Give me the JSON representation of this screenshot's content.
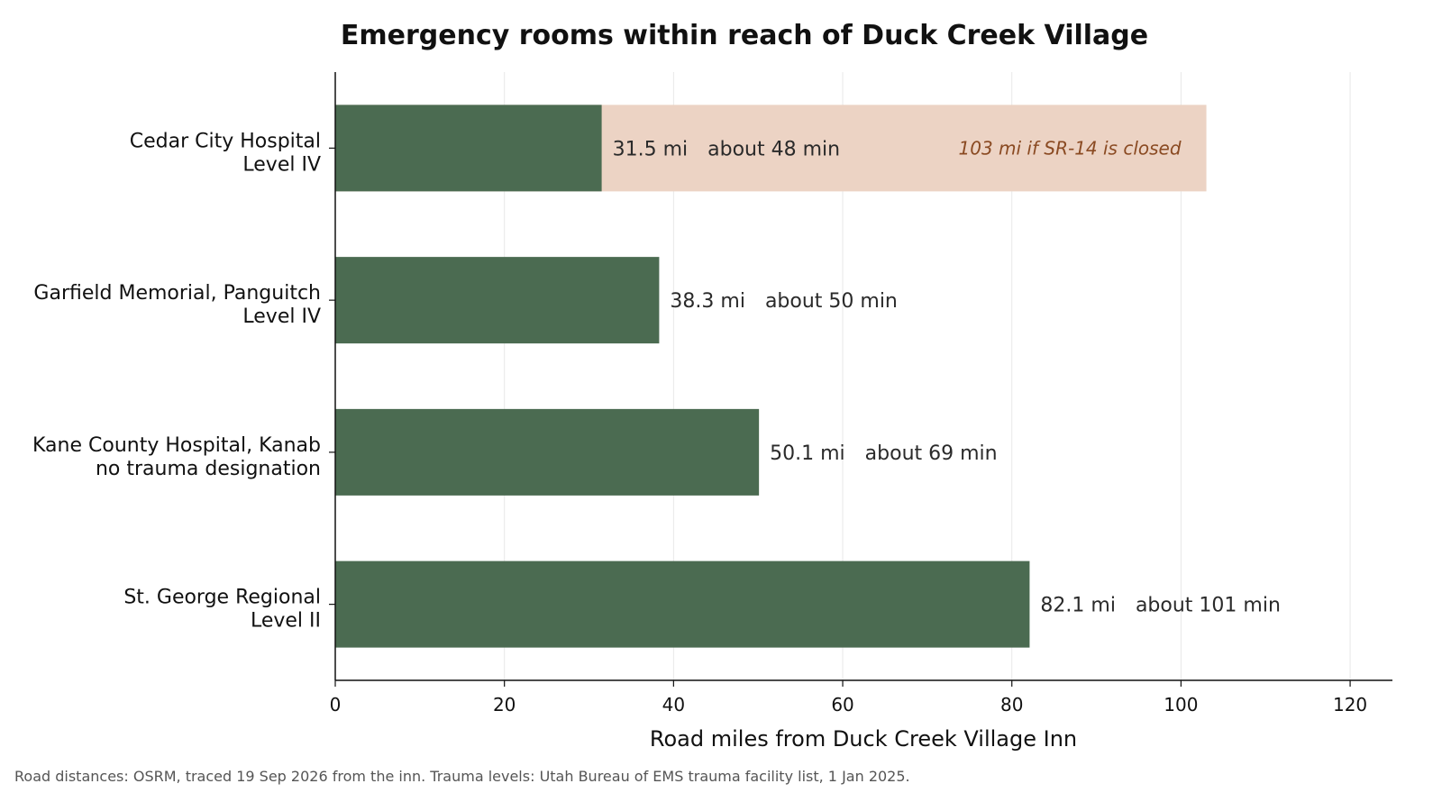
{
  "chart_data": {
    "type": "bar",
    "orientation": "horizontal",
    "title": "Emergency rooms within reach of Duck Creek Village",
    "xlabel": "Road miles from Duck Creek Village Inn",
    "ylabel": "",
    "xlim": [
      0,
      125
    ],
    "xticks": [
      0,
      20,
      40,
      60,
      80,
      100,
      120
    ],
    "grid": "vertical",
    "categories": [
      {
        "line1": "Cedar City Hospital",
        "line2": "Level IV"
      },
      {
        "line1": "Garfield Memorial, Panguitch",
        "line2": "Level IV"
      },
      {
        "line1": "Kane County Hospital, Kanab",
        "line2": "no trauma designation"
      },
      {
        "line1": "St. George Regional",
        "line2": "Level II"
      }
    ],
    "values": [
      31.5,
      38.3,
      50.1,
      82.1
    ],
    "value_labels": [
      "31.5 mi",
      "38.3 mi",
      "50.1 mi",
      "82.1 mi"
    ],
    "time_labels": [
      "about 48 min",
      "about 50 min",
      "about 69 min",
      "about 101 min"
    ],
    "alternate": {
      "category_index": 0,
      "value": 103,
      "label": "103 mi if SR-14 is closed"
    },
    "colors": {
      "bar": "#4b6b51",
      "alternate_bar": "#ecd3c4",
      "alternate_text": "#8a4a22",
      "grid": "#e8e8e8"
    }
  },
  "footnote": "Road distances: OSRM, traced 19 Sep 2026 from the inn. Trauma levels: Utah Bureau of EMS trauma facility list, 1 Jan 2025."
}
